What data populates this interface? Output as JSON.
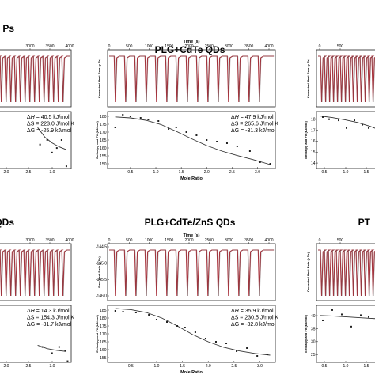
{
  "chart_data": [
    {
      "type": "line",
      "title": "Ps",
      "top_xlabel": "",
      "top_x_ticks": [
        "3000",
        "3500",
        "4000"
      ],
      "top_ylabel": "",
      "bottom_xlabel": "",
      "bottom_x_ticks": [
        "2.0",
        "2.5",
        "3.0"
      ],
      "bottom_ylabel": "",
      "bottom_y_ticks": [],
      "ylim": [
        0,
        1
      ],
      "xlim": [
        0,
        3.3
      ],
      "thermo": {
        "dH": "40.5 kJ/mol",
        "dS": "223.0 J/mol K",
        "dG": "-25.9 kJ/mol"
      },
      "points": [
        [
          2.0,
          0.42
        ],
        [
          2.3,
          0.5
        ],
        [
          2.5,
          0.28
        ],
        [
          2.7,
          0.36
        ],
        [
          2.9,
          0.5
        ],
        [
          3.1,
          0.04
        ]
      ],
      "fit": [
        [
          1.9,
          0.72
        ],
        [
          2.2,
          0.55
        ],
        [
          2.5,
          0.45
        ],
        [
          2.8,
          0.38
        ],
        [
          3.1,
          0.33
        ]
      ]
    },
    {
      "type": "line",
      "title": "PLG+CdTe QDs",
      "top_xlabel": "Time (s)",
      "top_x_ticks": [
        "0",
        "500",
        "1000",
        "1500",
        "2000",
        "2500",
        "3000",
        "3500",
        "4000"
      ],
      "top_ylabel": "Corrected Heat Rate (µJ/s)",
      "bottom_xlabel": "Mole Ratio",
      "bottom_x_ticks": [
        "0.5",
        "1.0",
        "1.5",
        "2.0",
        "2.5",
        "3.0"
      ],
      "bottom_ylabel": "Enthalpy and Fit (kJ/mol)",
      "bottom_y_ticks": [
        "180",
        "175",
        "170",
        "165",
        "160",
        "155",
        "150"
      ],
      "ylim": [
        147,
        183
      ],
      "xlim": [
        0.05,
        3.35
      ],
      "thermo": {
        "dH": "47.9 kJ/mol",
        "dS": "265.6 J/mol K",
        "dG": "-31.3 kJ/mol"
      },
      "points": [
        [
          0.2,
          173
        ],
        [
          0.35,
          181
        ],
        [
          0.5,
          180
        ],
        [
          0.7,
          179
        ],
        [
          0.85,
          178
        ],
        [
          1.05,
          177
        ],
        [
          1.25,
          172
        ],
        [
          1.4,
          173
        ],
        [
          1.6,
          170
        ],
        [
          1.8,
          168
        ],
        [
          2.0,
          165
        ],
        [
          2.2,
          164
        ],
        [
          2.4,
          163
        ],
        [
          2.6,
          161
        ],
        [
          2.85,
          158
        ],
        [
          3.05,
          151
        ],
        [
          3.25,
          150
        ]
      ],
      "fit": [
        [
          0.2,
          179.6
        ],
        [
          0.5,
          179
        ],
        [
          0.8,
          177.5
        ],
        [
          1.1,
          174.8
        ],
        [
          1.4,
          170.5
        ],
        [
          1.7,
          165.8
        ],
        [
          2.0,
          161.5
        ],
        [
          2.3,
          158
        ],
        [
          2.6,
          155.2
        ],
        [
          2.9,
          152.7
        ],
        [
          3.25,
          149.5
        ]
      ]
    },
    {
      "type": "line",
      "title": "",
      "top_xlabel": "",
      "top_x_ticks": [
        "0",
        "500"
      ],
      "top_ylabel": "Corrected Heat Rate (µJ/s)",
      "bottom_xlabel": "",
      "bottom_x_ticks": [
        "0.5",
        "1.0",
        "1.5"
      ],
      "bottom_ylabel": "Enthalpy and Fit (kJ/mol)",
      "bottom_y_ticks": [
        "18",
        "17",
        "16",
        "15",
        "14"
      ],
      "ylim": [
        13.5,
        18.7
      ],
      "xlim": [
        0.1,
        2.2
      ],
      "thermo": null,
      "points": [
        [
          0.3,
          18.2
        ],
        [
          0.5,
          18.0
        ],
        [
          0.8,
          17.9
        ],
        [
          1.05,
          17.2
        ],
        [
          1.3,
          17.9
        ],
        [
          1.55,
          17.5
        ],
        [
          1.75,
          17.2
        ],
        [
          2.0,
          17.0
        ]
      ],
      "fit": [
        [
          0.2,
          18.3
        ],
        [
          0.6,
          18.15
        ],
        [
          1.0,
          17.95
        ],
        [
          1.4,
          17.7
        ],
        [
          1.8,
          17.35
        ],
        [
          2.2,
          16.9
        ]
      ]
    },
    {
      "type": "line",
      "title": "QDs",
      "top_xlabel": "",
      "top_x_ticks": [
        "3000",
        "3500",
        "4000"
      ],
      "top_ylabel": "",
      "bottom_xlabel": "",
      "bottom_x_ticks": [
        "2.0",
        "2.5",
        "3.0"
      ],
      "bottom_ylabel": "",
      "bottom_y_ticks": [],
      "ylim": [
        0,
        1
      ],
      "xlim": [
        0,
        3.3
      ],
      "thermo": {
        "dH": "14.3 kJ/mol",
        "dS": "154.3 J/mol K",
        "dG": "-31.7 kJ/mol"
      },
      "points": [
        [
          2.1,
          0.27
        ],
        [
          2.5,
          0.16
        ],
        [
          2.8,
          0.27
        ],
        [
          3.05,
          0.2
        ],
        [
          3.15,
          0.02
        ]
      ],
      "fit": [
        [
          1.9,
          0.3
        ],
        [
          2.3,
          0.24
        ],
        [
          2.7,
          0.21
        ],
        [
          3.1,
          0.19
        ]
      ]
    },
    {
      "type": "line",
      "title": "PLG+CdTe/ZnS QDs",
      "top_xlabel": "Time (s)",
      "top_x_ticks": [
        "0",
        "500",
        "1000",
        "1500",
        "2000",
        "2500",
        "3000",
        "3500",
        "4000"
      ],
      "top_ylabel": "Raw Heat Rate (µJ/s)",
      "top_y_ticks": [
        "-144.5",
        "-145.0",
        "-145.5",
        "-146.0"
      ],
      "bottom_xlabel": "Mole Ratio",
      "bottom_x_ticks": [
        "0.5",
        "1.0",
        "1.5",
        "2.0",
        "2.5",
        "3.0"
      ],
      "bottom_ylabel": "Enthalpy and Fit (kJ/mol)",
      "bottom_y_ticks": [
        "185",
        "180",
        "175",
        "170",
        "165",
        "160",
        "155"
      ],
      "ylim": [
        152,
        188
      ],
      "xlim": [
        0.05,
        3.3
      ],
      "thermo": {
        "dH": "35.9 kJ/mol",
        "dS": "230.5 J/mol K",
        "dG": "-32.8 kJ/mol"
      },
      "points": [
        [
          0.2,
          184.5
        ],
        [
          0.35,
          184
        ],
        [
          0.6,
          183.5
        ],
        [
          0.85,
          182
        ],
        [
          1.0,
          179
        ],
        [
          1.2,
          177.5
        ],
        [
          1.4,
          175
        ],
        [
          1.55,
          174
        ],
        [
          1.75,
          171
        ],
        [
          1.95,
          167
        ],
        [
          2.15,
          165
        ],
        [
          2.35,
          164
        ],
        [
          2.55,
          159
        ],
        [
          2.75,
          161
        ],
        [
          2.95,
          156
        ],
        [
          3.15,
          157
        ]
      ],
      "fit": [
        [
          0.2,
          186
        ],
        [
          0.5,
          185.3
        ],
        [
          0.8,
          183.5
        ],
        [
          1.1,
          180
        ],
        [
          1.4,
          175
        ],
        [
          1.7,
          169.5
        ],
        [
          2.0,
          165
        ],
        [
          2.3,
          161.5
        ],
        [
          2.6,
          159.2
        ],
        [
          2.9,
          157.6
        ],
        [
          3.2,
          156.5
        ]
      ]
    },
    {
      "type": "line",
      "title": "PT",
      "top_xlabel": "",
      "top_x_ticks": [
        "0",
        "500"
      ],
      "top_ylabel": "Corrected Heat Rate (µJ/s)",
      "bottom_xlabel": "",
      "bottom_x_ticks": [
        "0.5",
        "1.0",
        "1.5"
      ],
      "bottom_ylabel": "Enthalpy and Fit (kJ/mol)",
      "bottom_y_ticks": [
        "40",
        "35",
        "30",
        "25"
      ],
      "ylim": [
        22,
        44
      ],
      "xlim": [
        0.1,
        2.2
      ],
      "thermo": null,
      "points": [
        [
          0.3,
          38.2
        ],
        [
          0.6,
          42.2
        ],
        [
          0.9,
          40.5
        ],
        [
          1.2,
          35.8
        ],
        [
          1.5,
          40.2
        ],
        [
          1.75,
          39.5
        ],
        [
          2.05,
          38.5
        ]
      ],
      "fit": [
        [
          0.2,
          40.1
        ],
        [
          0.6,
          39.9
        ],
        [
          1.0,
          39.6
        ],
        [
          1.4,
          39.3
        ],
        [
          1.8,
          39.0
        ],
        [
          2.2,
          38.7
        ]
      ]
    }
  ]
}
